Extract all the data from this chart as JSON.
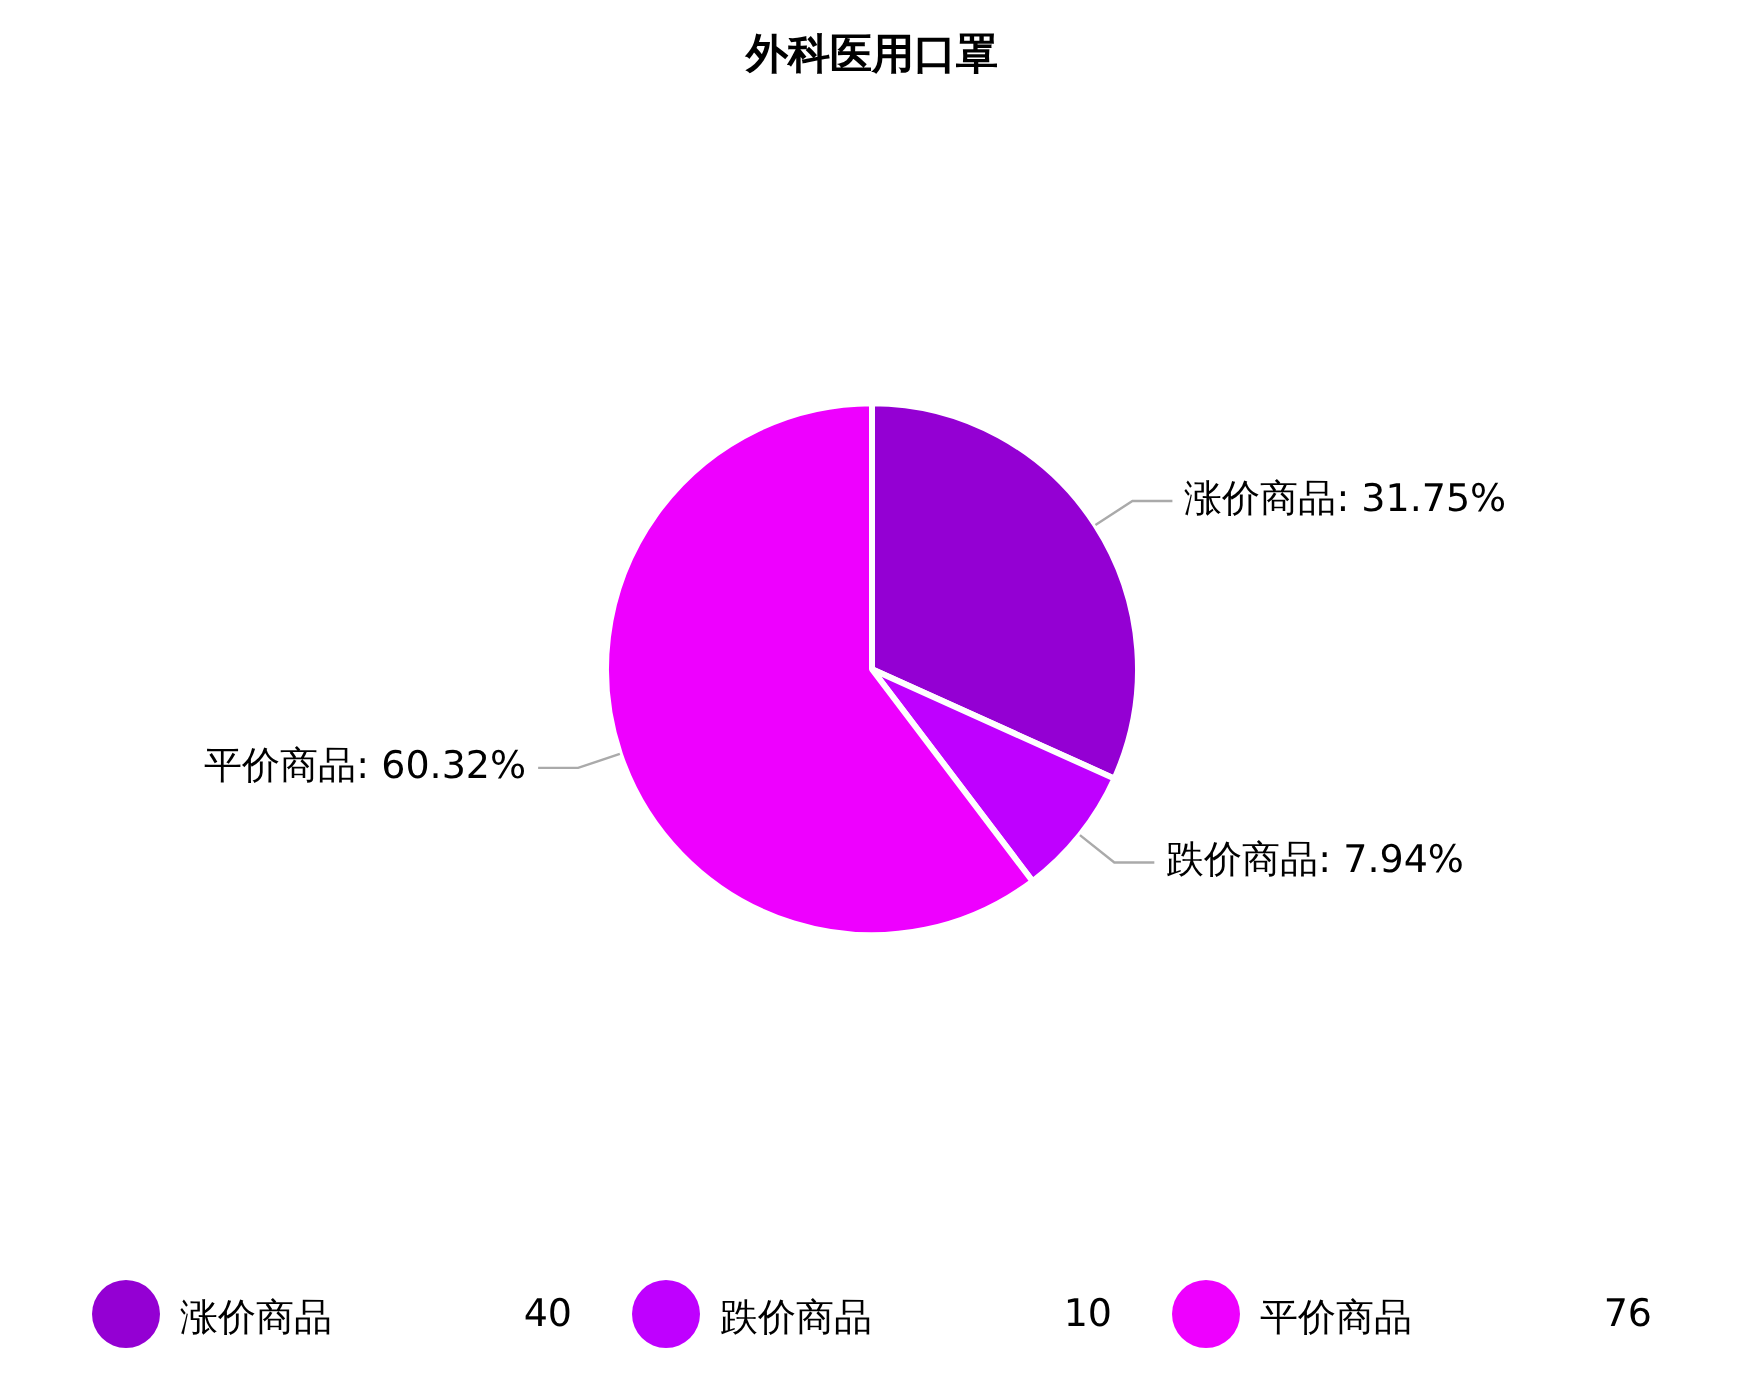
{
  "chart_data": {
    "type": "pie",
    "title": "外科医用口罩",
    "categories": [
      "涨价商品",
      "跌价商品",
      "平价商品"
    ],
    "values": [
      31.75,
      7.94,
      60.32
    ],
    "colors": [
      "#9400d3",
      "#bf00ff",
      "#ee00ff"
    ],
    "value_labels": [
      "涨价商品: 31.75%",
      "跌价商品: 7.94%",
      "平价商品: 60.32%"
    ],
    "annotations": [
      "40",
      "10",
      "76"
    ],
    "legend": "bottom"
  }
}
